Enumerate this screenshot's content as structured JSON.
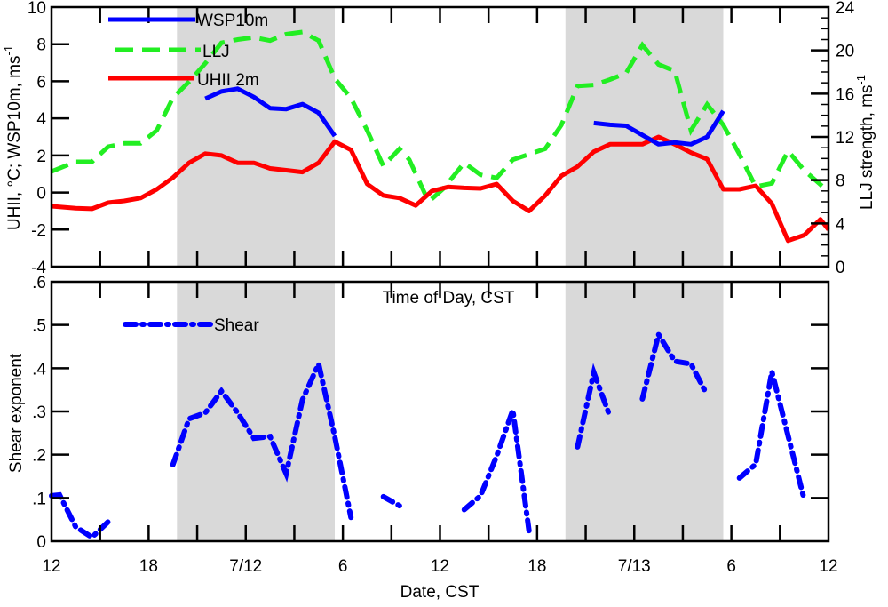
{
  "colors": {
    "wsp": "#0000ff",
    "llj": "#22ee22",
    "uhii": "#ff0000",
    "shear": "#0000ff",
    "night_shade": "#d9d9d9"
  },
  "x_axis": {
    "title": "Date, CST",
    "range_hours": [
      0,
      48
    ],
    "tick_labels": [
      "12",
      "18",
      "7/12",
      "6",
      "12",
      "18",
      "7/13",
      "6",
      "12"
    ],
    "tick_label_hours": [
      0,
      6,
      12,
      18,
      24,
      30,
      36,
      42,
      48
    ],
    "minor_tick_step_hours": 3
  },
  "shaded_periods_hours": [
    [
      7.75,
      17.5
    ],
    [
      31.75,
      41.5
    ]
  ],
  "chart_data": [
    {
      "type": "line",
      "panel": "top",
      "xlabel": "Date, CST",
      "ylabel": "UHII, °C; WSP10m, ms",
      "ylabel_sup": "-1",
      "y2label": "LLJ strength, ms",
      "y2label_sup": "-1",
      "ylim": [
        -4,
        10
      ],
      "y2lim": [
        0,
        24
      ],
      "yticks": [
        "10",
        "8",
        "6",
        "4",
        "2",
        "0",
        "-2",
        "-4"
      ],
      "ytick_values": [
        10,
        8,
        6,
        4,
        2,
        0,
        -2,
        -4
      ],
      "y2ticks": [
        "24",
        "20",
        "16",
        "12",
        "8",
        "4",
        "0"
      ],
      "y2tick_values": [
        24,
        20,
        16,
        12,
        8,
        4,
        0
      ],
      "legend_position": "top-left",
      "series": [
        {
          "name": "WSP10m",
          "axis": "left",
          "style": "solid",
          "color_key": "wsp",
          "segments": [
            {
              "x": [
                9.5,
                10.5,
                11.5,
                12.5,
                13.5,
                14.5,
                15.5,
                16.5,
                17.5
              ],
              "y": [
                5.06,
                5.45,
                5.6,
                5.15,
                4.55,
                4.5,
                4.77,
                4.3,
                3.05
              ]
            },
            {
              "x": [
                33.5,
                34.5,
                35.5,
                36.5,
                37.5,
                38.5,
                39.5,
                40.5,
                41.5
              ],
              "y": [
                3.75,
                3.65,
                3.6,
                3.1,
                2.6,
                2.7,
                2.6,
                3.0,
                4.4
              ]
            }
          ]
        },
        {
          "name": "LLJ",
          "axis": "right",
          "style": "dashed",
          "color_key": "llj",
          "segments": [
            {
              "x": [
                0,
                1.5,
                2.5,
                3.5,
                4.5,
                5.5,
                6.5,
                7.5,
                8.5,
                9.5,
                10.5,
                11.5,
                12.5,
                13.5,
                14.5,
                15.5,
                16.5,
                17.5,
                18.5,
                19.5,
                20.5,
                21.5,
                22.1,
                23.3,
                24.2,
                25.5,
                26.5,
                27.5,
                28.5,
                29.5,
                30.5,
                31.5,
                32.5,
                33.5,
                34.5,
                35.5,
                36.5,
                37.5,
                38.5,
                39.5,
                40.5,
                41.5,
                42.5,
                43.5,
                44.5,
                45.5,
                46.5,
                47.8
              ],
              "y": [
                8.8,
                9.7,
                9.7,
                11.1,
                11.4,
                11.4,
                12.6,
                15.6,
                17.1,
                18.8,
                20.7,
                21.0,
                21.2,
                20.9,
                21.5,
                21.7,
                20.9,
                17.4,
                15.6,
                12.6,
                9.3,
                10.9,
                9.9,
                6.0,
                7.2,
                9.6,
                8.5,
                8.2,
                9.9,
                10.4,
                10.9,
                13.1,
                16.7,
                16.8,
                17.3,
                17.9,
                20.5,
                18.7,
                18.1,
                12.6,
                15.0,
                13.1,
                10.4,
                7.4,
                7.7,
                10.7,
                8.9,
                7.2
              ]
            }
          ]
        },
        {
          "name": "UHII 2m",
          "axis": "left",
          "style": "solid",
          "color_key": "uhii",
          "segments": [
            {
              "x": [
                0,
                1.5,
                2.5,
                3.5,
                4.5,
                5.5,
                6.5,
                7.5,
                8.5,
                9.5,
                10.5,
                11.5,
                12.5,
                13.5,
                14.5,
                15.5,
                16.5,
                17.5,
                18.5,
                19.5,
                20.5,
                21.5,
                22.5,
                23.5,
                24.5,
                25.5,
                26.5,
                27.5,
                28.5,
                29.5,
                30.5,
                31.5,
                32.5,
                33.5,
                34.5,
                35.5,
                36.5,
                37.5,
                38.5,
                39.5,
                40.5,
                41.5,
                42.5,
                43.5,
                44.5,
                45.5,
                46.5,
                47.5,
                48
              ],
              "y": [
                -0.74,
                -0.85,
                -0.88,
                -0.55,
                -0.45,
                -0.3,
                0.17,
                0.8,
                1.6,
                2.1,
                2.0,
                1.6,
                1.6,
                1.3,
                1.2,
                1.1,
                1.6,
                2.75,
                2.3,
                0.46,
                -0.16,
                -0.3,
                -0.7,
                0.08,
                0.3,
                0.25,
                0.22,
                0.46,
                -0.45,
                -1.0,
                -0.16,
                0.9,
                1.4,
                2.2,
                2.6,
                2.6,
                2.6,
                3.0,
                2.6,
                2.15,
                1.8,
                0.17,
                0.17,
                0.36,
                -0.6,
                -2.6,
                -2.3,
                -1.45,
                -2.0
              ]
            }
          ]
        }
      ]
    },
    {
      "type": "line",
      "panel": "bottom",
      "xlabel": "Date, CST",
      "ylabel": "Shear exponent",
      "inner_label": "Time of Day, CST",
      "ylim": [
        0,
        0.6
      ],
      "yticks": [
        ".6",
        ".5",
        ".4",
        ".3",
        ".2",
        ".1",
        "0"
      ],
      "ytick_values": [
        0.6,
        0.5,
        0.4,
        0.3,
        0.2,
        0.1,
        0
      ],
      "legend_position": "top-left",
      "series": [
        {
          "name": "Shear",
          "axis": "left",
          "style": "dashdot",
          "color_key": "shear",
          "segments": [
            {
              "x": [
                0,
                0.5,
                1.5,
                2.5,
                3.5
              ],
              "y": [
                0.105,
                0.107,
                0.033,
                0.009,
                0.045
              ]
            },
            {
              "x": [
                7.5,
                8.5,
                9.5,
                10.5,
                11.5,
                12.5,
                13.5,
                14.5,
                15.5,
                16.5,
                17.5,
                18.5
              ],
              "y": [
                0.177,
                0.283,
                0.297,
                0.347,
                0.297,
                0.238,
                0.242,
                0.156,
                0.327,
                0.41,
                0.242,
                0.055
              ]
            },
            {
              "x": [
                20.5,
                21.5
              ],
              "y": [
                0.103,
                0.082
              ]
            },
            {
              "x": [
                25.5,
                26.5,
                27.5,
                28.5,
                29.5
              ],
              "y": [
                0.073,
                0.105,
                0.197,
                0.303,
                0.023
              ]
            },
            {
              "x": [
                32.5,
                33.5,
                34.5
              ],
              "y": [
                0.218,
                0.39,
                0.288
              ]
            },
            {
              "x": [
                36.5,
                37.5,
                38.5,
                39.5,
                40.5
              ],
              "y": [
                0.329,
                0.478,
                0.416,
                0.41,
                0.338
              ]
            },
            {
              "x": [
                42.5,
                43.5,
                44.5,
                46.5
              ],
              "y": [
                0.146,
                0.178,
                0.392,
                0.096
              ]
            }
          ]
        }
      ]
    }
  ]
}
